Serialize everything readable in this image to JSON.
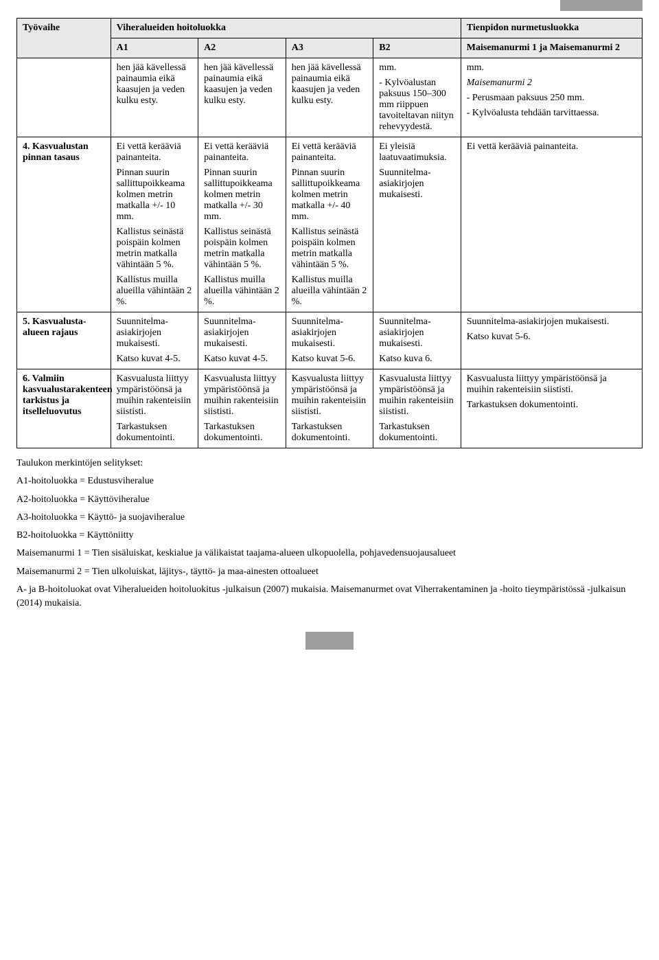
{
  "header": {
    "col0": "Työvaihe",
    "col_group_left": "Viheralueiden hoitoluokka",
    "col_group_right": "Tienpidon nurmetusluokka",
    "sub": {
      "a1": "A1",
      "a2": "A2",
      "a3": "A3",
      "b2": "B2",
      "mn": "Maisemanurmi 1 ja Maisemanurmi 2"
    }
  },
  "rows": {
    "carry": {
      "label": "",
      "a1": [
        "hen jää kävellessä painaumia eikä kaasujen ja veden kulku esty."
      ],
      "a2": [
        "hen jää kävellessä painaumia eikä kaasujen ja veden kulku esty."
      ],
      "a3": [
        "hen jää kävellessä painaumia eikä kaasujen ja veden kulku esty."
      ],
      "b2": [
        "mm.",
        "- Kylvöalustan paksuus 150–300 mm riippuen tavoiteltavan niityn rehevyydestä."
      ],
      "mn_plain": [
        "mm."
      ],
      "mn_ital_label": "Maisemanurmi 2",
      "mn_rest": [
        "- Perusmaan paksuus 250 mm.",
        "- Kylvöalusta tehdään tarvittaessa."
      ]
    },
    "r4": {
      "label": "4. Kasvualustan pinnan tasaus",
      "a1": [
        "Ei vettä kerääviä painanteita.",
        "Pinnan suurin sallittupoikkeama kolmen metrin matkalla +/- 10 mm.",
        "Kallistus seinästä poispäin kolmen metrin matkalla vähintään 5 %.",
        "Kallistus muilla alueilla vähintään 2 %."
      ],
      "a2": [
        "Ei vettä kerääviä painanteita.",
        "Pinnan suurin sallittupoikkeama kolmen metrin matkalla +/- 30 mm.",
        "Kallistus seinästä poispäin kolmen metrin matkalla vähintään 5 %.",
        "Kallistus muilla alueilla vähintään 2 %."
      ],
      "a3": [
        "Ei vettä kerääviä painanteita.",
        "Pinnan suurin sallittupoikkeama kolmen metrin matkalla +/- 40 mm.",
        "Kallistus seinästä poispäin kolmen metrin matkalla vähintään 5 %.",
        "Kallistus muilla alueilla vähintään 2 %."
      ],
      "b2": [
        "Ei yleisiä laatuvaatimuksia.",
        "Suunnitelma-asiakirjojen mukaisesti."
      ],
      "mn": [
        "Ei vettä kerääviä painanteita."
      ]
    },
    "r5": {
      "label": "5. Kasvualusta-alueen rajaus",
      "a1": [
        "Suunnitelma-asiakirjojen mukaisesti.",
        "Katso kuvat 4-5."
      ],
      "a2": [
        "Suunnitelma-asiakirjojen mukaisesti.",
        "Katso kuvat 4-5."
      ],
      "a3": [
        "Suunnitelma-asiakirjojen mukaisesti.",
        "Katso kuvat 5-6."
      ],
      "b2": [
        "Suunnitelma-asiakirjojen mukaisesti.",
        "Katso kuva 6."
      ],
      "mn": [
        "Suunnitelma-asiakirjojen mukaisesti.",
        "Katso kuvat 5-6."
      ]
    },
    "r6": {
      "label": "6. Valmiin kasvualustarakenteen tarkistus ja itselleluovutus",
      "a1": [
        "Kasvualusta liittyy ympäristöönsä ja muihin rakenteisiin siististi.",
        "Tarkastuksen dokumentointi."
      ],
      "a2": [
        "Kasvualusta liittyy ympäristöönsä ja muihin rakenteisiin siististi.",
        "Tarkastuksen dokumentointi."
      ],
      "a3": [
        "Kasvualusta liittyy ympäristöönsä ja muihin rakenteisiin siististi.",
        "Tarkastuksen dokumentointi."
      ],
      "b2": [
        "Kasvualusta liittyy ympäristöönsä ja muihin rakenteisiin siististi.",
        "Tarkastuksen dokumentointi."
      ],
      "mn": [
        "Kasvualusta liittyy ympäristöönsä ja muihin rakenteisiin siististi.",
        "Tarkastuksen dokumentointi."
      ]
    }
  },
  "footnotes": [
    "Taulukon merkintöjen selitykset:",
    "A1-hoitoluokka = Edustusviheralue",
    "A2-hoitoluokka = Käyttöviheralue",
    "A3-hoitoluokka = Käyttö- ja suojaviheralue",
    "B2-hoitoluokka = Käyttöniitty",
    "Maisemanurmi 1 = Tien sisäluiskat, keskialue ja välikaistat taajama-alueen ulkopuolella, pohjavedensuojausalueet",
    "Maisemanurmi 2 = Tien ulkoluiskat, läjitys-, täyttö- ja maa-ainesten ottoalueet",
    "A- ja B-hoitoluokat ovat Viheralueiden hoitoluokitus -julkaisun (2007) mukaisia. Maisemanurmet ovat Viherrakentaminen ja -hoito tieympäristössä -julkaisun (2014) mukaisia."
  ]
}
